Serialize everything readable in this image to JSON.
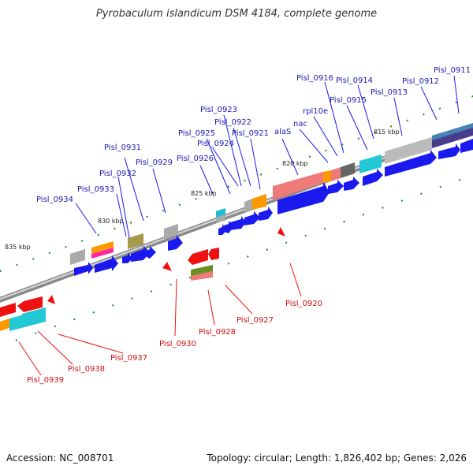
{
  "title": "Pyrobaculum islandicum DSM 4184, complete genome",
  "footer": {
    "accession": "Accession: NC_008701",
    "stats": "Topology: circular; Length: 1,826,402 bp; Genes: 2,026"
  },
  "colors": {
    "forward_cds": "#1a1aee",
    "reverse_cds": "#ee1111",
    "forward_label": "#1a1ab0",
    "reverse_label": "#cc1111",
    "backbone": "#8a8a8a",
    "tick": "#1e8a1e"
  },
  "scale_labels": [
    "835 kbp",
    "830 kbp",
    "825 kbp",
    "820 kbp",
    "815 kbp"
  ],
  "forward_labels": [
    "Pisl_0934",
    "Pisl_0933",
    "Pisl_0932",
    "Pisl_0931",
    "Pisl_0929",
    "Pisl_0926",
    "Pisl_0925",
    "Pisl_0924",
    "Pisl_0923",
    "Pisl_0922",
    "Pisl_0921",
    "alaS",
    "nac",
    "rpl10e",
    "Pisl_0916",
    "Pisl_0915",
    "Pisl_0914",
    "Pisl_0913",
    "Pisl_0912",
    "Pisl_0911"
  ],
  "reverse_labels": [
    "Pisl_0939",
    "Pisl_0938",
    "Pisl_0937",
    "Pisl_0930",
    "Pisl_0928",
    "Pisl_0927",
    "Pisl_0920"
  ]
}
